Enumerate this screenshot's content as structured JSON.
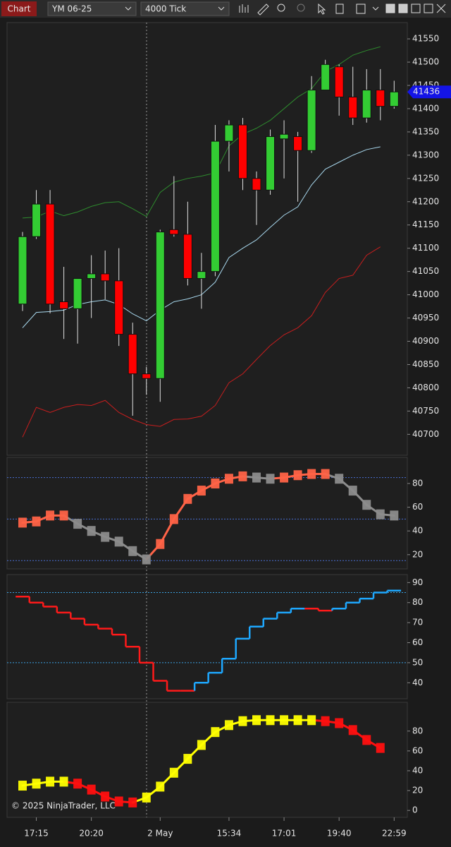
{
  "toolbar": {
    "tab": "Chart",
    "instrument": "YM 06-25",
    "interval": "4000 Tick"
  },
  "copyright": "© 2025 NinjaTrader, LLC",
  "chart_data": [
    {
      "type": "candlestick",
      "categories": [
        null,
        "17:15",
        null,
        null,
        null,
        "20:20",
        null,
        null,
        null,
        null,
        "2 May",
        null,
        null,
        null,
        null,
        "15:34",
        null,
        null,
        null,
        "17:01",
        null,
        null,
        null,
        "19:40",
        null,
        null,
        null,
        "22:59"
      ],
      "open": [
        40980,
        41125,
        41195,
        40985,
        40970,
        41035,
        41045,
        41030,
        40915,
        40830,
        40820,
        41140,
        41130,
        41035,
        41050,
        41330,
        41365,
        41250,
        41225,
        41335,
        41340,
        41310,
        41440,
        41490,
        41425,
        41380,
        41440,
        41405
      ],
      "high": [
        41135,
        41225,
        41225,
        41060,
        41035,
        41085,
        41095,
        41100,
        40940,
        40845,
        41140,
        41255,
        41200,
        41090,
        41365,
        41375,
        41380,
        41265,
        41355,
        41375,
        41350,
        41470,
        41505,
        41495,
        41490,
        41485,
        41485,
        41460
      ],
      "low": [
        40965,
        41120,
        40960,
        40905,
        40895,
        40950,
        40990,
        40890,
        40740,
        40785,
        40770,
        41125,
        41020,
        40970,
        41040,
        41265,
        41225,
        41150,
        41215,
        41250,
        41200,
        41305,
        41440,
        41385,
        41365,
        41370,
        41375,
        41400
      ],
      "close": [
        41125,
        41195,
        40980,
        40970,
        41035,
        41045,
        41030,
        40915,
        40830,
        40820,
        41135,
        41130,
        41035,
        41050,
        41330,
        41365,
        41250,
        41225,
        41340,
        41345,
        41310,
        41440,
        41495,
        41425,
        41380,
        41440,
        41405,
        41436
      ],
      "up_color": "#33cc33",
      "down_color": "#ff0000",
      "series": [
        {
          "color": "#2e8b2e",
          "values": [
            41165,
            41167,
            41180,
            41170,
            41178,
            41190,
            41198,
            41200,
            41185,
            41168,
            41220,
            41242,
            41250,
            41255,
            41262,
            41320,
            41345,
            41358,
            41375,
            41400,
            41425,
            41443,
            41480,
            41495,
            41515,
            41525,
            41533,
            null
          ]
        },
        {
          "color": "#a8d8ee",
          "values": [
            40929,
            40962,
            40964,
            40967,
            40979,
            40985,
            40989,
            40979,
            40959,
            40944,
            40967,
            40985,
            40991,
            41000,
            41027,
            41080,
            41100,
            41118,
            41145,
            41171,
            41189,
            41236,
            41270,
            41285,
            41300,
            41312,
            41318,
            null
          ]
        },
        {
          "color": "#c81e1e",
          "values": [
            40694,
            40758,
            40747,
            40758,
            40764,
            40762,
            40773,
            40747,
            40732,
            40721,
            40717,
            40732,
            40733,
            40739,
            40762,
            40811,
            40830,
            40861,
            40891,
            40914,
            40929,
            40955,
            41005,
            41035,
            41042,
            41085,
            41103,
            null
          ]
        }
      ],
      "ylim": [
        40655,
        41585
      ],
      "yticks": [
        40700,
        40750,
        40800,
        40850,
        40900,
        40950,
        41000,
        41050,
        41100,
        41150,
        41200,
        41250,
        41300,
        41350,
        41400,
        41450,
        41500,
        41550
      ],
      "price_marker_color": "#1414e6"
    },
    {
      "type": "line",
      "values": [
        47,
        48,
        53,
        53,
        46,
        40,
        35,
        31,
        23,
        16,
        29,
        50,
        67,
        74,
        80,
        84,
        86,
        85,
        84,
        85,
        87,
        88,
        88,
        84,
        74,
        62,
        54,
        53
      ],
      "up_color": "#ff6347",
      "down_color": "#8c8c8c",
      "levels": [
        85,
        50,
        15
      ],
      "level_color": "#4a6fd0",
      "ylim": [
        8,
        102
      ],
      "yticks": [
        20,
        40,
        60,
        80
      ]
    },
    {
      "type": "step",
      "values": [
        83,
        80,
        78,
        75,
        72,
        69,
        67,
        64,
        58,
        50,
        41,
        36,
        36,
        40,
        45,
        52,
        62,
        68,
        72,
        75,
        77,
        77,
        76,
        77,
        80,
        82,
        85,
        86
      ],
      "colors": [
        "#ff1a1a",
        "#ff1a1a",
        "#ff1a1a",
        "#ff1a1a",
        "#ff1a1a",
        "#ff1a1a",
        "#ff1a1a",
        "#ff1a1a",
        "#ff1a1a",
        "#ff1a1a",
        "#ff1a1a",
        "#ff1a1a",
        "#ff1a1a",
        "#1ea8ff",
        "#1ea8ff",
        "#1ea8ff",
        "#1ea8ff",
        "#1ea8ff",
        "#1ea8ff",
        "#1ea8ff",
        "#1ea8ff",
        "#ff1a1a",
        "#ff1a1a",
        "#1ea8ff",
        "#1ea8ff",
        "#1ea8ff",
        "#1ea8ff",
        "#1ea8ff"
      ],
      "levels": [
        85,
        50
      ],
      "level_color": "#3aa0e0",
      "ylim": [
        32,
        94
      ],
      "yticks": [
        40,
        50,
        60,
        70,
        80,
        90
      ]
    },
    {
      "type": "line",
      "values": [
        25,
        27,
        29,
        29,
        27,
        21,
        14,
        9,
        8,
        13,
        24,
        38,
        52,
        66,
        79,
        86,
        90,
        91,
        91,
        91,
        91,
        91,
        90,
        88,
        81,
        71,
        63,
        null
      ],
      "up_color": "#ffff00",
      "down_color": "#ff1010",
      "ylim": [
        -7,
        109
      ],
      "yticks": [
        0,
        20,
        40,
        60,
        80
      ]
    }
  ]
}
